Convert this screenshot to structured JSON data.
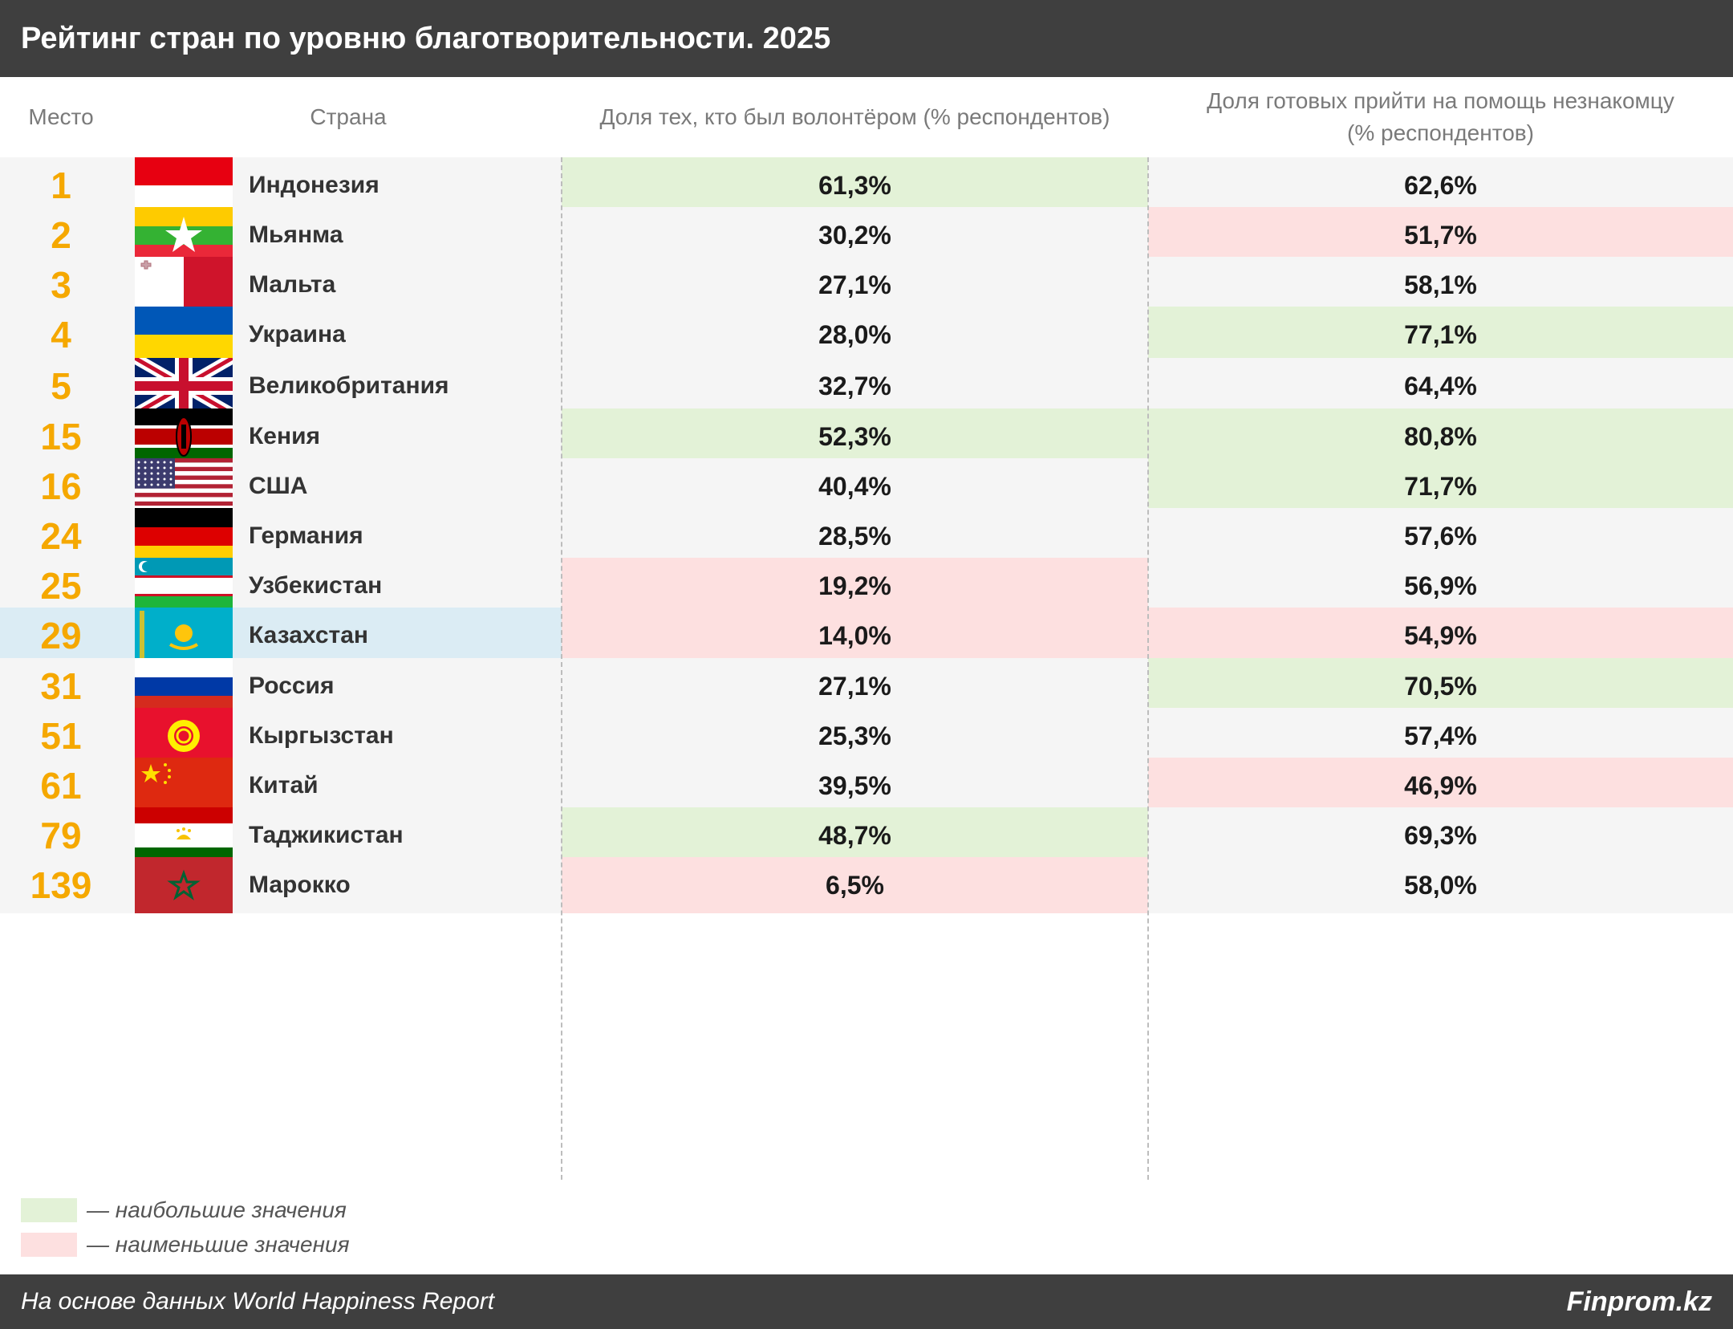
{
  "title": "Рейтинг стран по уровню благотворительности. 2025",
  "headers": {
    "rank": "Место",
    "country": "Страна",
    "volunteer": "Доля тех, кто был волонтёром (% респондентов)",
    "help_line1": "Доля готовых прийти на помощь незнакомцу",
    "help_line2": "(% респондентов)"
  },
  "rows": [
    {
      "rank": "1",
      "country": "Индонезия",
      "flag": "indonesia-flag-icon",
      "volunteer": "61,3%",
      "help": "62,6%",
      "hl_volunteer": "green",
      "hl_help": ""
    },
    {
      "rank": "2",
      "country": "Мьянма",
      "flag": "myanmar-flag-icon",
      "volunteer": "30,2%",
      "help": "51,7%",
      "hl_volunteer": "",
      "hl_help": "red"
    },
    {
      "rank": "3",
      "country": "Мальта",
      "flag": "malta-flag-icon",
      "volunteer": "27,1%",
      "help": "58,1%",
      "hl_volunteer": "",
      "hl_help": ""
    },
    {
      "rank": "4",
      "country": "Украина",
      "flag": "ukraine-flag-icon",
      "volunteer": "28,0%",
      "help": "77,1%",
      "hl_volunteer": "",
      "hl_help": "green"
    },
    {
      "rank": "5",
      "country": "Великобритания",
      "flag": "uk-flag-icon",
      "volunteer": "32,7%",
      "help": "64,4%",
      "hl_volunteer": "",
      "hl_help": ""
    },
    {
      "rank": "15",
      "country": "Кения",
      "flag": "kenya-flag-icon",
      "volunteer": "52,3%",
      "help": "80,8%",
      "hl_volunteer": "green",
      "hl_help": "green"
    },
    {
      "rank": "16",
      "country": "США",
      "flag": "usa-flag-icon",
      "volunteer": "40,4%",
      "help": "71,7%",
      "hl_volunteer": "",
      "hl_help": "green"
    },
    {
      "rank": "24",
      "country": "Германия",
      "flag": "germany-flag-icon",
      "volunteer": "28,5%",
      "help": "57,6%",
      "hl_volunteer": "",
      "hl_help": ""
    },
    {
      "rank": "25",
      "country": "Узбекистан",
      "flag": "uzbekistan-flag-icon",
      "volunteer": "19,2%",
      "help": "56,9%",
      "hl_volunteer": "red",
      "hl_help": ""
    },
    {
      "rank": "29",
      "country": "Казахстан",
      "flag": "kazakhstan-flag-icon",
      "volunteer": "14,0%",
      "help": "54,9%",
      "hl_volunteer": "red",
      "hl_help": "red",
      "highlight_row": true
    },
    {
      "rank": "31",
      "country": "Россия",
      "flag": "russia-flag-icon",
      "volunteer": "27,1%",
      "help": "70,5%",
      "hl_volunteer": "",
      "hl_help": "green"
    },
    {
      "rank": "51",
      "country": "Кыргызстан",
      "flag": "kyrgyzstan-flag-icon",
      "volunteer": "25,3%",
      "help": "57,4%",
      "hl_volunteer": "",
      "hl_help": ""
    },
    {
      "rank": "61",
      "country": "Китай",
      "flag": "china-flag-icon",
      "volunteer": "39,5%",
      "help": "46,9%",
      "hl_volunteer": "",
      "hl_help": "red"
    },
    {
      "rank": "79",
      "country": "Таджикистан",
      "flag": "tajikistan-flag-icon",
      "volunteer": "48,7%",
      "help": "69,3%",
      "hl_volunteer": "green",
      "hl_help": ""
    },
    {
      "rank": "139",
      "country": "Марокко",
      "flag": "morocco-flag-icon",
      "volunteer": "6,5%",
      "help": "58,0%",
      "hl_volunteer": "red",
      "hl_help": ""
    }
  ],
  "legend": {
    "highest": "— наибольшие значения",
    "lowest": "— наименьшие значения"
  },
  "colors": {
    "highest": "#e3f2d7",
    "lowest": "#fde0e0",
    "rank": "#f5a800",
    "bar": "#3f3f3f"
  },
  "footer": {
    "source": "На основе данных World Happiness Report",
    "brand": "Finprom.kz"
  }
}
